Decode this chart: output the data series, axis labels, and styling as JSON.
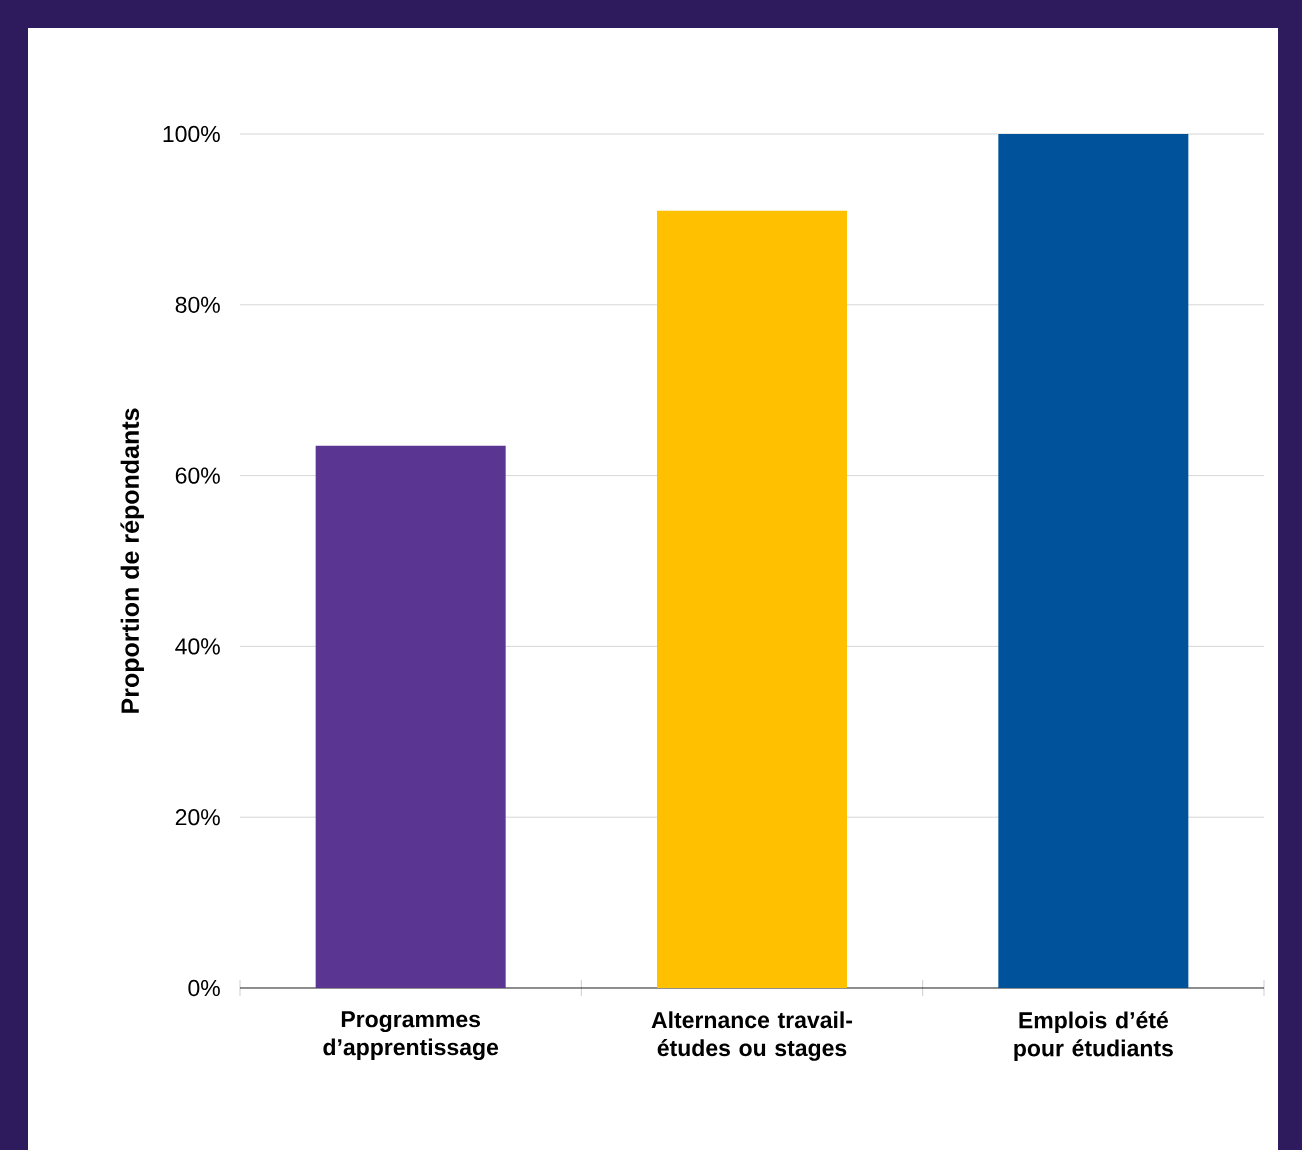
{
  "chart_data": {
    "type": "bar",
    "ylabel": "Proportion de répondants",
    "categories": [
      "Programmes d’apprentissage",
      "Alternance travail-études ou stages",
      "Emplois d’été pour étudiants"
    ],
    "values": [
      63.5,
      91,
      100
    ],
    "colors": [
      "#5a3591",
      "#ffc000",
      "#00529b"
    ],
    "ylim": [
      0,
      100
    ],
    "yticks": [
      {
        "value": 0,
        "label": "0%"
      },
      {
        "value": 20,
        "label": "20%"
      },
      {
        "value": 40,
        "label": "40%"
      },
      {
        "value": 60,
        "label": "60%"
      },
      {
        "value": 80,
        "label": "80%"
      },
      {
        "value": 100,
        "label": "100%"
      }
    ],
    "grid": "y"
  }
}
